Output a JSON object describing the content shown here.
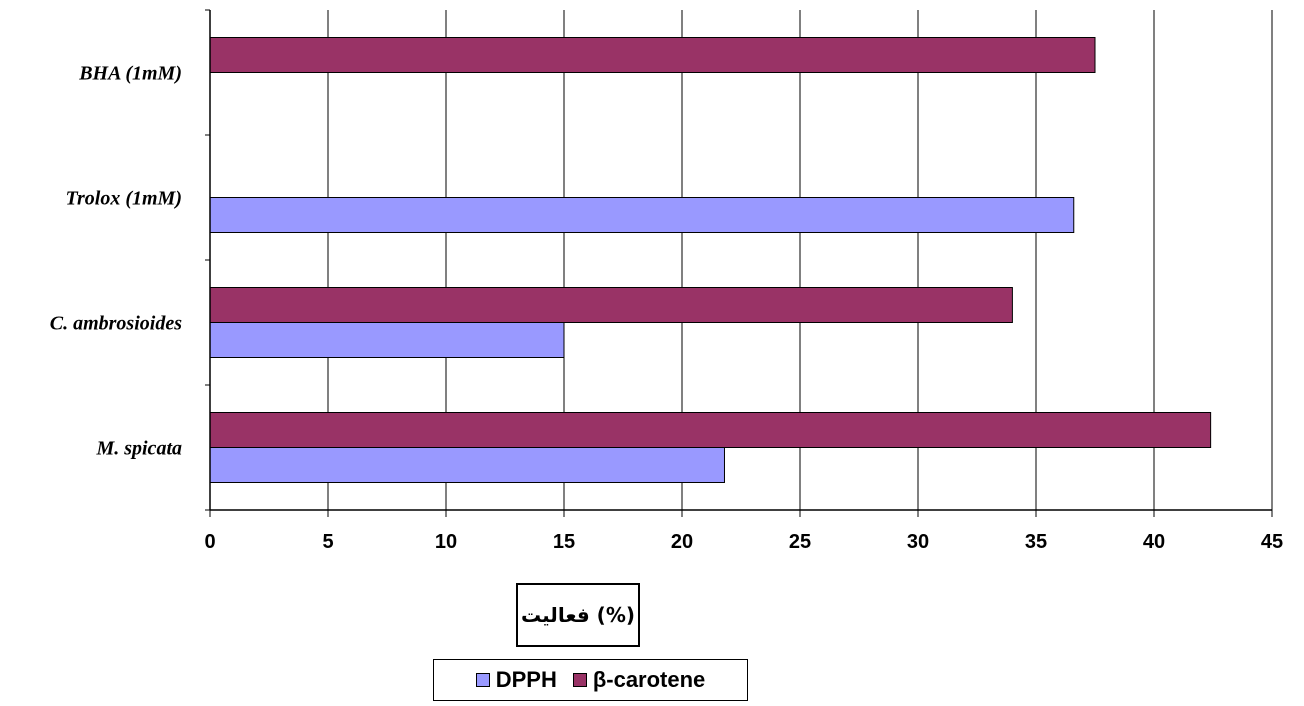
{
  "chart_data": {
    "type": "bar",
    "orientation": "horizontal",
    "categories": [
      "M. spicata",
      "C. ambrosioides",
      "Trolox (1mM)",
      "BHA (1mM)"
    ],
    "series": [
      {
        "name": "DPPH",
        "color": "#9999ff",
        "values": [
          21.8,
          15.0,
          36.6,
          null
        ]
      },
      {
        "name": "β-carotene",
        "color": "#993366",
        "values": [
          42.4,
          34.0,
          null,
          37.5
        ]
      }
    ],
    "xlim": [
      0,
      45
    ],
    "x_ticks": [
      "0",
      "5",
      "10",
      "15",
      "20",
      "25",
      "30",
      "35",
      "40",
      "45"
    ],
    "xlabel": "فعالیت (%)",
    "ylabel": "",
    "title": "",
    "grid": "vertical",
    "legend_position": "bottom"
  }
}
